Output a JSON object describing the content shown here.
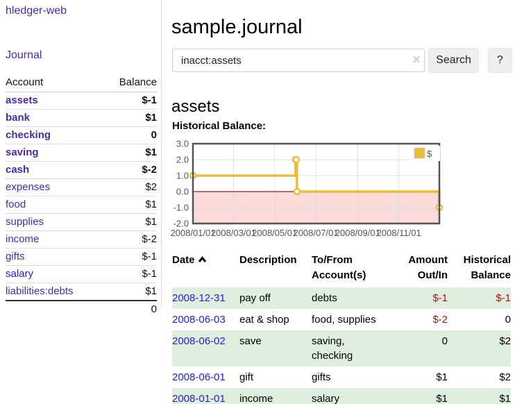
{
  "app": {
    "brand": "hledger-web"
  },
  "sidebar": {
    "journal_link": "Journal",
    "accounts_table": {
      "account_header": "Account",
      "balance_header": "Balance",
      "rows": [
        {
          "name": "assets",
          "level": 1,
          "bold": true,
          "name_style": "purple",
          "balance": "$-1",
          "balance_style": "neg-strong"
        },
        {
          "name": "bank",
          "level": 2,
          "bold": true,
          "name_style": "purple",
          "balance": "$1",
          "balance_style": "pos"
        },
        {
          "name": "checking",
          "level": 3,
          "bold": true,
          "name_style": "purple",
          "balance": "0",
          "balance_style": "pos"
        },
        {
          "name": "saving",
          "level": 3,
          "bold": true,
          "name_style": "purple",
          "balance": "$1",
          "balance_style": "pos"
        },
        {
          "name": "cash",
          "level": 2,
          "bold": true,
          "name_style": "purple",
          "balance": "$-2",
          "balance_style": "neg-strong"
        },
        {
          "name": "expenses",
          "level": 1,
          "bold": false,
          "name_style": "purple",
          "balance": "$2",
          "balance_style": "pos"
        },
        {
          "name": "food",
          "level": 2,
          "bold": false,
          "name_style": "purple",
          "balance": "$1",
          "balance_style": "pos"
        },
        {
          "name": "supplies",
          "level": 2,
          "bold": false,
          "name_style": "purple",
          "balance": "$1",
          "balance_style": "pos"
        },
        {
          "name": "income",
          "level": 1,
          "bold": false,
          "name_style": "purple",
          "balance": "$-2",
          "balance_style": "neg-soft"
        },
        {
          "name": "gifts",
          "level": 2,
          "bold": false,
          "name_style": "purple",
          "balance": "$-1",
          "balance_style": "neg-soft"
        },
        {
          "name": "salary",
          "level": 2,
          "bold": false,
          "name_style": "blue",
          "balance": "$-1",
          "balance_style": "neg-soft"
        },
        {
          "name": "liabilities:debts",
          "level": 1,
          "bold": false,
          "name_style": "purple",
          "balance": "$1",
          "balance_style": "pos"
        }
      ],
      "total": "0"
    }
  },
  "main": {
    "title": "sample.journal",
    "search": {
      "value": "inacct:assets",
      "clear_icon": "✕",
      "search_button": "Search",
      "help_button": "?"
    },
    "account_heading": "assets",
    "chart_label": "Historical Balance:",
    "register": {
      "headers": {
        "date": "Date",
        "description": "Description",
        "tofrom": "To/From Account(s)",
        "amount": "Amount Out/In",
        "balance": "Historical Balance"
      },
      "rows": [
        {
          "date": "2008-12-31",
          "description": "pay off",
          "accounts": "debts",
          "amount": "$-1",
          "amount_neg": true,
          "balance": "$-1",
          "balance_neg": true
        },
        {
          "date": "2008-06-03",
          "description": "eat & shop",
          "accounts": "food, supplies",
          "amount": "$-2",
          "amount_neg": true,
          "balance": "0",
          "balance_neg": false
        },
        {
          "date": "2008-06-02",
          "description": "save",
          "accounts": "saving, checking",
          "amount": "0",
          "amount_neg": false,
          "balance": "$2",
          "balance_neg": false
        },
        {
          "date": "2008-06-01",
          "description": "gift",
          "accounts": "gifts",
          "amount": "$1",
          "amount_neg": false,
          "balance": "$2",
          "balance_neg": false
        },
        {
          "date": "2008-01-01",
          "description": "income",
          "accounts": "salary",
          "amount": "$1",
          "amount_neg": false,
          "balance": "$1",
          "balance_neg": false
        }
      ]
    }
  },
  "chart_data": {
    "type": "line",
    "step": true,
    "title": "Historical Balance of assets",
    "legend": [
      {
        "label": "$",
        "color": "#e6bd3e"
      }
    ],
    "legend_position": "top-right",
    "grid": true,
    "ylim": [
      -2,
      3
    ],
    "y_ticks": [
      {
        "label": "3.0",
        "value": 3
      },
      {
        "label": "2.0",
        "value": 2
      },
      {
        "label": "1.0",
        "value": 1
      },
      {
        "label": "0.0",
        "value": 0
      },
      {
        "label": "-1.0",
        "value": -1
      },
      {
        "label": "-2.0",
        "value": -2
      }
    ],
    "x_range_days": 365,
    "x_ticks": [
      {
        "label": "2008/01/01",
        "day": 0
      },
      {
        "label": "2008/03/01",
        "day": 60
      },
      {
        "label": "2008/05/01",
        "day": 121
      },
      {
        "label": "2008/07/01",
        "day": 182
      },
      {
        "label": "2008/09/01",
        "day": 244
      },
      {
        "label": "2008/11/01",
        "day": 305
      }
    ],
    "points": [
      {
        "date": "2008-01-01",
        "day": 0,
        "value": 1
      },
      {
        "date": "2008-06-01",
        "day": 152,
        "value": 2
      },
      {
        "date": "2008-06-02",
        "day": 153,
        "value": 2
      },
      {
        "date": "2008-06-03",
        "day": 154,
        "value": 0
      },
      {
        "date": "2008-12-31",
        "day": 365,
        "value": -1
      }
    ],
    "colors": {
      "line": "#e6bd3e",
      "marker_fill": "#ffffff",
      "negative_fill": "#fbdada",
      "zero_line": "#8b1a1a",
      "grid_line": "#dfdfdf",
      "plot_border": "#545454",
      "tick_text": "#545454"
    }
  }
}
